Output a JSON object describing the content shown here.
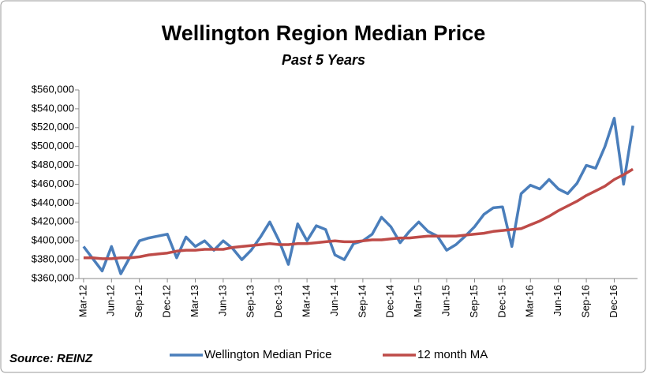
{
  "chart_data": {
    "type": "line",
    "title": "Wellington Region Median Price",
    "subtitle": "Past 5 Years",
    "source": "Source: REINZ",
    "categories": [
      "Mar-12",
      null,
      null,
      "Jun-12",
      null,
      null,
      "Sep-12",
      null,
      null,
      "Dec-12",
      null,
      null,
      "Mar-13",
      null,
      null,
      "Jun-13",
      null,
      null,
      "Sep-13",
      null,
      null,
      "Dec-13",
      null,
      null,
      "Mar-14",
      null,
      null,
      "Jun-14",
      null,
      null,
      "Sep-14",
      null,
      null,
      "Dec-14",
      null,
      null,
      "Mar-15",
      null,
      null,
      "Jun-15",
      null,
      null,
      "Sep-15",
      null,
      null,
      "Dec-15",
      null,
      null,
      "Mar-16",
      null,
      null,
      "Jun-16",
      null,
      null,
      "Sep-16",
      null,
      null,
      "Dec-16",
      null,
      null
    ],
    "series": [
      {
        "name": "Wellington Median Price",
        "color": "#4a7ebb",
        "values": [
          394000,
          381000,
          368000,
          394000,
          365000,
          383000,
          400000,
          403000,
          405000,
          407000,
          382000,
          404000,
          394000,
          400000,
          390000,
          400000,
          392000,
          380000,
          390000,
          404000,
          420000,
          400000,
          375000,
          418000,
          400000,
          416000,
          412000,
          385000,
          380000,
          397000,
          400000,
          407000,
          425000,
          415000,
          398000,
          410000,
          420000,
          410000,
          405000,
          390000,
          396000,
          405000,
          415000,
          428000,
          435000,
          436000,
          394000,
          450000,
          459000,
          455000,
          465000,
          455000,
          450000,
          461000,
          480000,
          477000,
          500000,
          530000,
          460000,
          522000
        ]
      },
      {
        "name": "12 month MA",
        "color": "#be4b48",
        "values": [
          382000,
          382000,
          381000,
          381000,
          382000,
          382000,
          383000,
          385000,
          386000,
          387000,
          389000,
          390000,
          390000,
          391000,
          391000,
          391000,
          393000,
          394000,
          395000,
          396000,
          397000,
          396000,
          396000,
          397000,
          397000,
          398000,
          399000,
          400000,
          399000,
          399000,
          400000,
          401000,
          401000,
          402000,
          403000,
          403000,
          404000,
          405000,
          405000,
          405000,
          405000,
          406000,
          407000,
          408000,
          410000,
          411000,
          412000,
          413000,
          417000,
          421000,
          426000,
          432000,
          437000,
          442000,
          448000,
          453000,
          458000,
          465000,
          470000,
          476000
        ]
      }
    ],
    "ylim": [
      360000,
      560000
    ],
    "yticks": [
      {
        "value": 360000,
        "label": "$360,000"
      },
      {
        "value": 380000,
        "label": "$380,000"
      },
      {
        "value": 400000,
        "label": "$400,000"
      },
      {
        "value": 420000,
        "label": "$420,000"
      },
      {
        "value": 440000,
        "label": "$440,000"
      },
      {
        "value": 460000,
        "label": "$460,000"
      },
      {
        "value": 480000,
        "label": "$480,000"
      },
      {
        "value": 500000,
        "label": "$500,000"
      },
      {
        "value": 520000,
        "label": "$520,000"
      },
      {
        "value": 540000,
        "label": "$540,000"
      },
      {
        "value": 560000,
        "label": "$560,000"
      }
    ],
    "legend": "bottom"
  }
}
